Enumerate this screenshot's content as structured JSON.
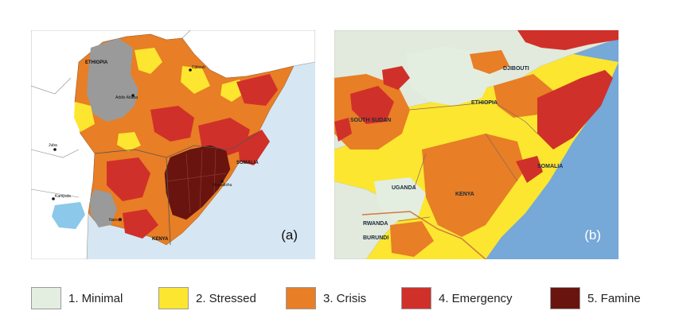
{
  "maps": [
    {
      "tag": "(a)",
      "labels": {
        "ethiopia": "ETHIOPIA",
        "djibouti": "Djibouti",
        "addis": "Addis Ababa",
        "juba": "Juba",
        "kampala": "Kampala",
        "somalia": "SOMALIA",
        "mogadishu": "Mogadishu",
        "nairobi": "Nairobi",
        "kenya": "KENYA"
      }
    },
    {
      "tag": "(b)",
      "labels": {
        "djibouti": "DJIBOUTI",
        "ethiopia": "ETHIOPIA",
        "south_sudan": "SOUTH SUDAN",
        "somalia": "SOMALIA",
        "uganda": "UGANDA",
        "kenya": "KENYA",
        "rwanda": "RWANDA",
        "burundi": "BURUNDI"
      }
    }
  ],
  "legend": [
    {
      "label": "1. Minimal",
      "color": "#e3eee0"
    },
    {
      "label": "2. Stressed",
      "color": "#fce630"
    },
    {
      "label": "3. Crisis",
      "color": "#e87e25"
    },
    {
      "label": "4. Emergency",
      "color": "#d0302a"
    },
    {
      "label": "5. Famine",
      "color": "#6a1410"
    }
  ],
  "colors": {
    "water_a": "#d6e7f3",
    "water_b": "#76a8d8",
    "neighbor_a": "#ffffff",
    "neighbor_b": "#e1eadc",
    "no_data": "#9a9a9a"
  }
}
